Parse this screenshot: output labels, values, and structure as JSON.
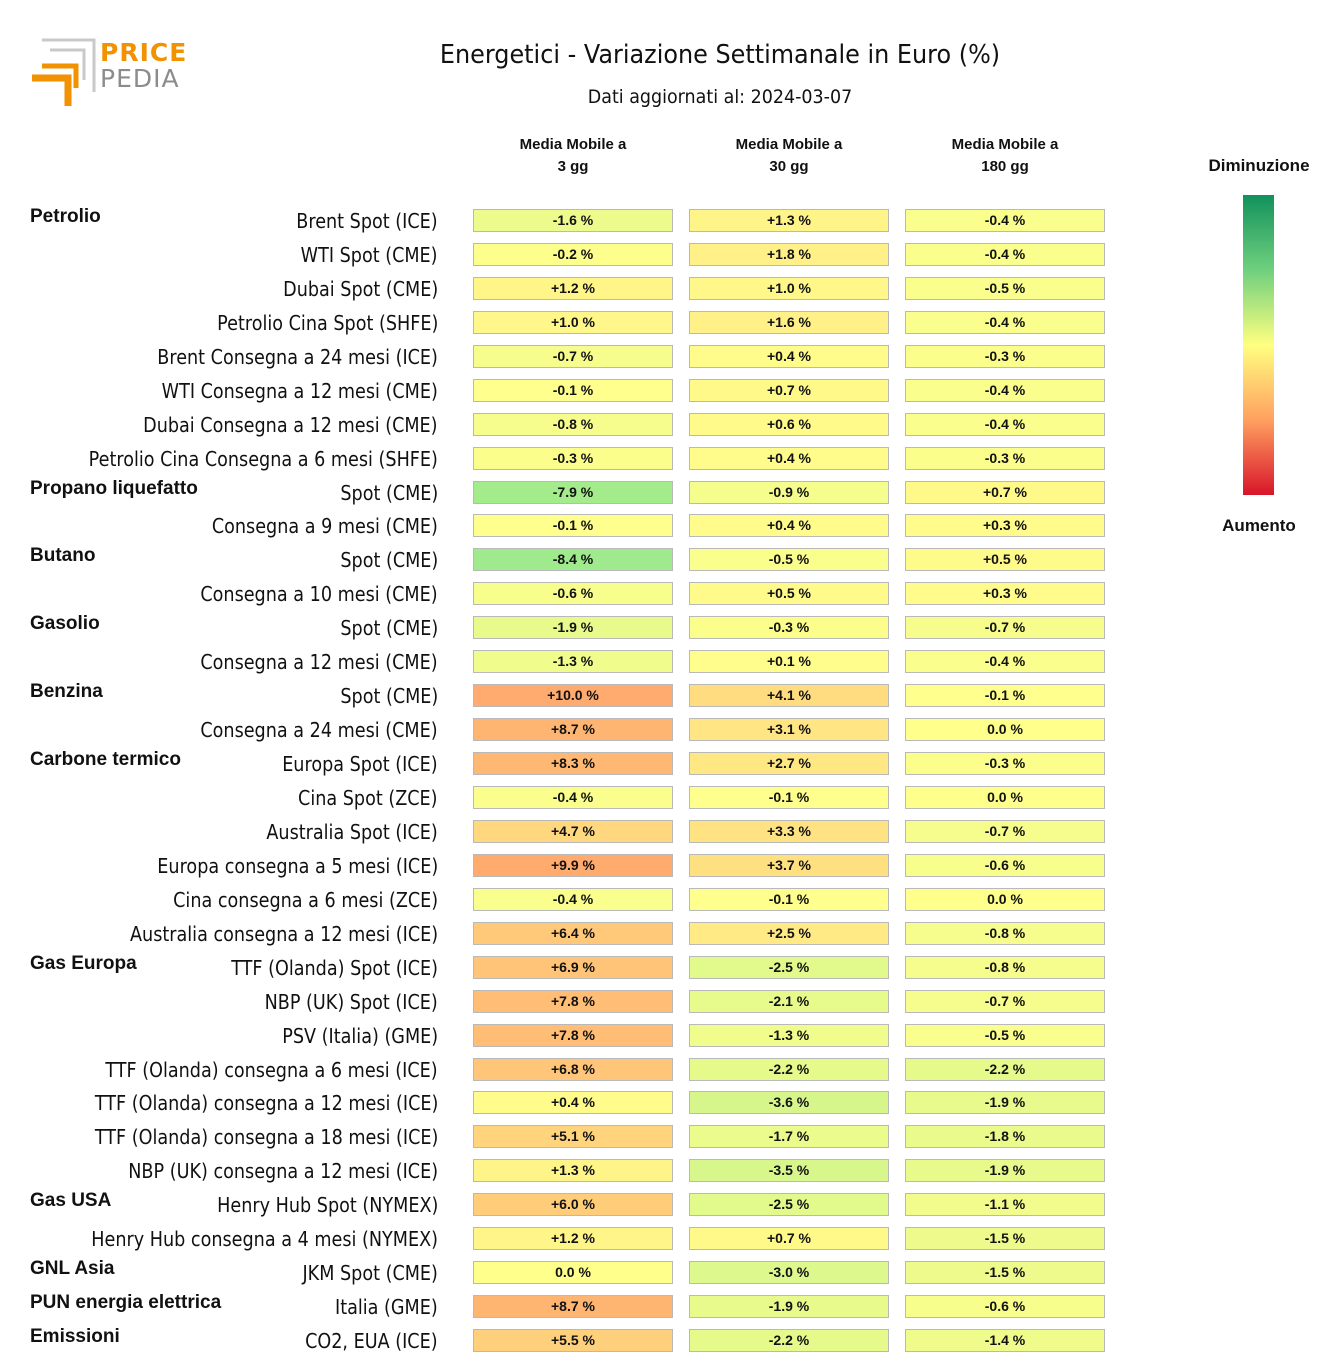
{
  "logo": {
    "word1": "PRICE",
    "word2": "PEDIA"
  },
  "chart_data": {
    "type": "table",
    "title": "Energetici - Variazione Settimanale in Euro (%)",
    "subtitle": "Dati aggiornati al: 2024-03-07",
    "columns": [
      "Media Mobile a\n3 gg",
      "Media Mobile a\n30 gg",
      "Media Mobile a\n180 gg"
    ],
    "legend": {
      "top": "Diminuzione",
      "bottom": "Aumento"
    },
    "groups": [
      {
        "name": "Petrolio",
        "rows": [
          {
            "label": "Brent Spot (ICE)",
            "values": [
              -1.6,
              1.3,
              -0.4
            ]
          },
          {
            "label": "WTI Spot (CME)",
            "values": [
              -0.2,
              1.8,
              -0.4
            ]
          },
          {
            "label": "Dubai Spot (CME)",
            "values": [
              1.2,
              1.0,
              -0.5
            ]
          },
          {
            "label": "Petrolio Cina Spot (SHFE)",
            "values": [
              1.0,
              1.6,
              -0.4
            ]
          },
          {
            "label": "Brent Consegna a 24 mesi (ICE)",
            "values": [
              -0.7,
              0.4,
              -0.3
            ]
          },
          {
            "label": "WTI Consegna a 12 mesi (CME)",
            "values": [
              -0.1,
              0.7,
              -0.4
            ]
          },
          {
            "label": "Dubai Consegna a 12 mesi (CME)",
            "values": [
              -0.8,
              0.6,
              -0.4
            ]
          },
          {
            "label": "Petrolio Cina Consegna a 6 mesi (SHFE)",
            "values": [
              -0.3,
              0.4,
              -0.3
            ]
          }
        ]
      },
      {
        "name": "Propano liquefatto",
        "rows": [
          {
            "label": "Spot (CME)",
            "values": [
              -7.9,
              -0.9,
              0.7
            ]
          },
          {
            "label": "Consegna a 9 mesi (CME)",
            "values": [
              -0.1,
              0.4,
              0.3
            ]
          }
        ]
      },
      {
        "name": "Butano",
        "rows": [
          {
            "label": "Spot (CME)",
            "values": [
              -8.4,
              -0.5,
              0.5
            ]
          },
          {
            "label": "Consegna a 10 mesi (CME)",
            "values": [
              -0.6,
              0.5,
              0.3
            ]
          }
        ]
      },
      {
        "name": "Gasolio",
        "rows": [
          {
            "label": "Spot (CME)",
            "values": [
              -1.9,
              -0.3,
              -0.7
            ]
          },
          {
            "label": "Consegna a 12 mesi (CME)",
            "values": [
              -1.3,
              0.1,
              -0.4
            ]
          }
        ]
      },
      {
        "name": "Benzina",
        "rows": [
          {
            "label": "Spot (CME)",
            "values": [
              10.0,
              4.1,
              -0.1
            ]
          },
          {
            "label": "Consegna a 24 mesi (CME)",
            "values": [
              8.7,
              3.1,
              0.0
            ]
          }
        ]
      },
      {
        "name": "Carbone termico",
        "rows": [
          {
            "label": "Europa Spot (ICE)",
            "values": [
              8.3,
              2.7,
              -0.3
            ]
          },
          {
            "label": "Cina Spot (ZCE)",
            "values": [
              -0.4,
              -0.1,
              0.0
            ]
          },
          {
            "label": "Australia Spot (ICE)",
            "values": [
              4.7,
              3.3,
              -0.7
            ]
          },
          {
            "label": "Europa consegna a 5 mesi (ICE)",
            "values": [
              9.9,
              3.7,
              -0.6
            ]
          },
          {
            "label": "Cina consegna a 6 mesi (ZCE)",
            "values": [
              -0.4,
              -0.1,
              0.0
            ]
          },
          {
            "label": "Australia consegna a 12 mesi (ICE)",
            "values": [
              6.4,
              2.5,
              -0.8
            ]
          }
        ]
      },
      {
        "name": "Gas Europa",
        "rows": [
          {
            "label": "TTF (Olanda) Spot (ICE)",
            "values": [
              6.9,
              -2.5,
              -0.8
            ]
          },
          {
            "label": "NBP (UK) Spot (ICE)",
            "values": [
              7.8,
              -2.1,
              -0.7
            ]
          },
          {
            "label": "PSV (Italia) (GME)",
            "values": [
              7.8,
              -1.3,
              -0.5
            ]
          },
          {
            "label": "TTF (Olanda) consegna a 6 mesi (ICE)",
            "values": [
              6.8,
              -2.2,
              -2.2
            ]
          },
          {
            "label": "TTF (Olanda) consegna a 12 mesi (ICE)",
            "values": [
              0.4,
              -3.6,
              -1.9
            ]
          },
          {
            "label": "TTF (Olanda) consegna a 18 mesi (ICE)",
            "values": [
              5.1,
              -1.7,
              -1.8
            ]
          },
          {
            "label": "NBP (UK) consegna a 12 mesi (ICE)",
            "values": [
              1.3,
              -3.5,
              -1.9
            ]
          }
        ]
      },
      {
        "name": "Gas USA",
        "rows": [
          {
            "label": "Henry Hub Spot (NYMEX)",
            "values": [
              6.0,
              -2.5,
              -1.1
            ]
          },
          {
            "label": "Henry Hub consegna a 4 mesi (NYMEX)",
            "values": [
              1.2,
              0.7,
              -1.5
            ]
          }
        ]
      },
      {
        "name": "GNL Asia",
        "rows": [
          {
            "label": "JKM Spot (CME)",
            "values": [
              0.0,
              -3.0,
              -1.5
            ]
          }
        ]
      },
      {
        "name": "PUN energia elettrica",
        "rows": [
          {
            "label": "Italia (GME)",
            "values": [
              8.7,
              -1.9,
              -0.6
            ]
          }
        ]
      },
      {
        "name": "Emissioni",
        "rows": [
          {
            "label": "CO2, EUA (ICE)",
            "values": [
              5.5,
              -2.2,
              -1.4
            ]
          }
        ]
      }
    ]
  }
}
